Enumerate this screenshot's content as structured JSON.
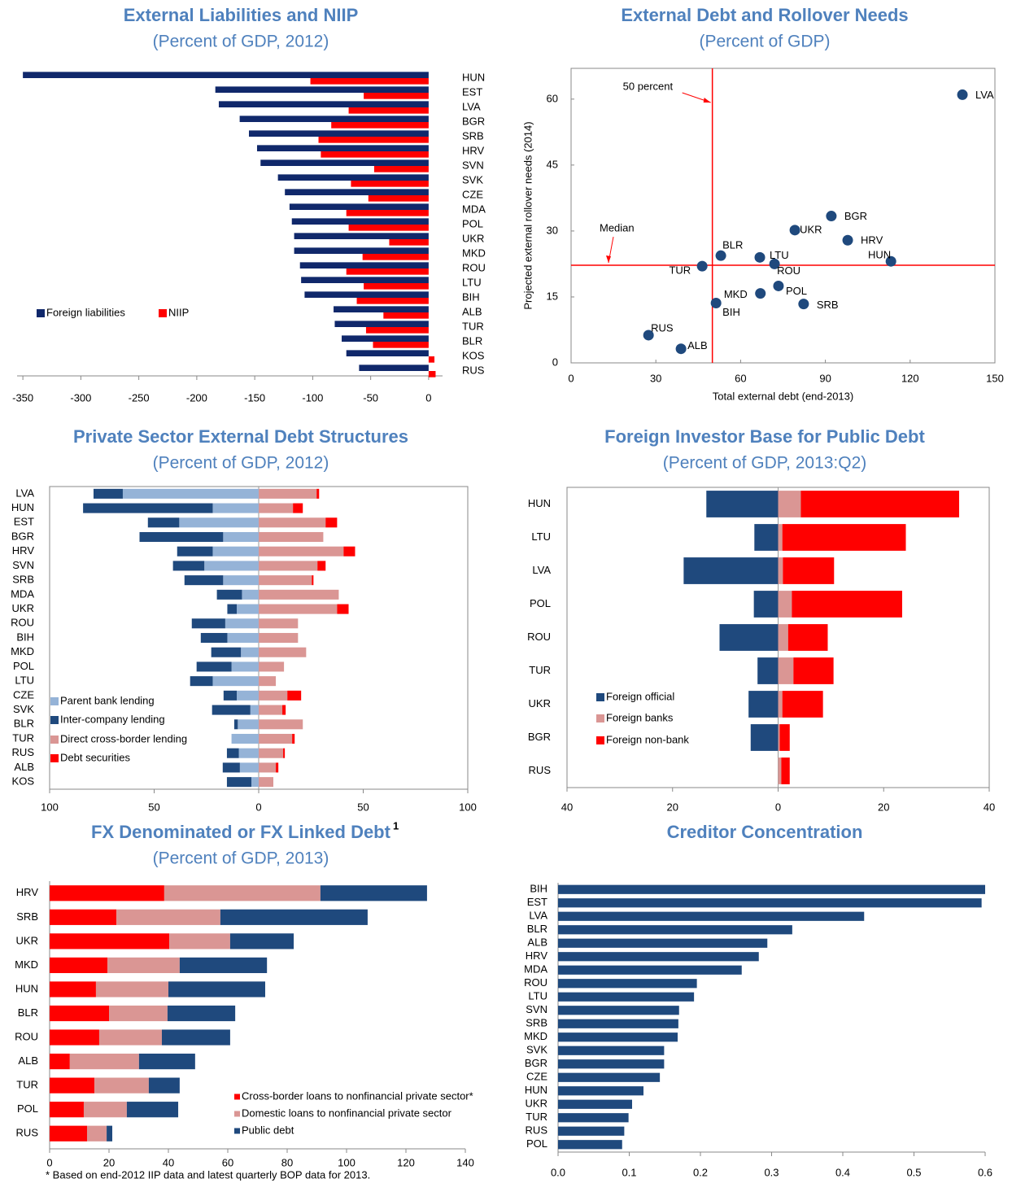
{
  "chart_data": [
    {
      "type": "bar",
      "barmode": "group",
      "title": "External Liabilities and NIIP",
      "subtitle": "(Percent of GDP, 2012)",
      "categories": [
        "HUN",
        "EST",
        "LVA",
        "BGR",
        "SRB",
        "HRV",
        "SVN",
        "SVK",
        "CZE",
        "MDA",
        "POL",
        "UKR",
        "MKD",
        "ROU",
        "LTU",
        "BIH",
        "ALB",
        "TUR",
        "BLR",
        "KOS",
        "RUS"
      ],
      "series": [
        {
          "name": "Foreign liabilities",
          "color": "#10286b",
          "values": [
            -350,
            -184,
            -181,
            -163,
            -155,
            -148,
            -145,
            -130,
            -124,
            -120,
            -118,
            -116,
            -116,
            -111,
            -110,
            -107,
            -82,
            -81,
            -75,
            -71,
            -60
          ]
        },
        {
          "name": "NIIP",
          "color": "#ff0000",
          "values": [
            -102,
            -56,
            -69,
            -84,
            -95,
            -93,
            -47,
            -67,
            -52,
            -71,
            -69,
            -34,
            -57,
            -71,
            -56,
            -62,
            -39,
            -54,
            -48,
            5,
            6
          ]
        }
      ],
      "xlim": [
        -355,
        12
      ],
      "xticks": [
        -350,
        -300,
        -250,
        -200,
        -150,
        -100,
        -50,
        0
      ]
    },
    {
      "type": "scatter",
      "title": "External Debt and Rollover Needs",
      "subtitle": "(Percent of GDP)",
      "x_label": "Total external debt (end-2013)",
      "y_label": "Projected external rollover needs (2014)",
      "labels": [
        "LVA",
        "BGR",
        "HRV",
        "HUN",
        "UKR",
        "BLR",
        "LTU",
        "ROU",
        "TUR",
        "POL",
        "MKD",
        "SRB",
        "BIH",
        "RUS",
        "ALB"
      ],
      "x": [
        138.5,
        92.1,
        97.9,
        113.2,
        79.2,
        53.0,
        66.8,
        72.0,
        46.4,
        73.4,
        67.0,
        82.3,
        51.3,
        27.4,
        38.9
      ],
      "y": [
        61,
        33.4,
        27.9,
        23.1,
        30.2,
        24.4,
        24.0,
        22.5,
        22.0,
        17.5,
        15.8,
        13.4,
        13.6,
        6.3,
        3.2
      ],
      "color": "#1f497d",
      "xlim": [
        0,
        150
      ],
      "ylim": [
        0,
        67
      ],
      "xticks": [
        0,
        30,
        60,
        90,
        120,
        150
      ],
      "yticks": [
        0,
        15,
        30,
        45,
        60
      ],
      "reference_lines": [
        {
          "axis": "x",
          "value": 50,
          "label": "50 percent"
        },
        {
          "axis": "y",
          "value": 22.2,
          "label": "Median"
        }
      ],
      "reference_color": "#ff0000"
    },
    {
      "type": "bar",
      "barmode": "stack",
      "title": "Private Sector External Debt Structures",
      "subtitle": "(Percent of GDP, 2012)",
      "categories": [
        "LVA",
        "HUN",
        "EST",
        "BGR",
        "HRV",
        "SVN",
        "SRB",
        "MDA",
        "UKR",
        "ROU",
        "BIH",
        "MKD",
        "POL",
        "LTU",
        "CZE",
        "SVK",
        "BLR",
        "TUR",
        "RUS",
        "ALB",
        "KOS"
      ],
      "series": [
        {
          "name": "Parent bank lending",
          "color": "#95b3d7",
          "values": [
            -65,
            -22,
            -38,
            -17,
            -22,
            -26,
            -17,
            -8,
            -10.5,
            -16,
            -15,
            -8.5,
            -13,
            -22,
            -10.5,
            -4,
            -10,
            -13,
            -9.5,
            -9,
            -3.5
          ]
        },
        {
          "name": "Inter-company lending",
          "color": "#1f497d",
          "values": [
            -14,
            -62,
            -15,
            -40,
            -17,
            -15,
            -18.5,
            -12,
            -4.5,
            -16,
            -12.7,
            -14.2,
            -16.7,
            -10.8,
            -6.3,
            -18.3,
            -1.7,
            0,
            -5.7,
            -8.2,
            -11.7
          ]
        },
        {
          "name": "Direct cross-border lending",
          "color": "#da9694",
          "values": [
            27.7,
            16.4,
            32,
            30.9,
            40.6,
            28.1,
            25.4,
            38.3,
            37.5,
            18.8,
            18.8,
            22.7,
            12.1,
            8.2,
            13.7,
            11.3,
            21.1,
            16,
            11.7,
            8.2,
            7
          ]
        },
        {
          "name": "Debt securities",
          "color": "#ff0000",
          "values": [
            1.2,
            4.7,
            5.5,
            0,
            5.5,
            3.9,
            0.8,
            0,
            5.5,
            0,
            0,
            0,
            0,
            0,
            6.6,
            1.6,
            0,
            1.2,
            0.8,
            1.2,
            0
          ]
        }
      ],
      "xlim": [
        -100,
        100
      ],
      "xticks": [
        {
          "value": -100,
          "label": "100"
        },
        {
          "value": -50,
          "label": "50"
        },
        0,
        50,
        100
      ]
    },
    {
      "type": "bar",
      "barmode": "stack",
      "title": "Foreign Investor Base for Public Debt",
      "subtitle": "(Percent of GDP, 2013:Q2)",
      "categories": [
        "HUN",
        "LTU",
        "LVA",
        "POL",
        "ROU",
        "TUR",
        "UKR",
        "BGR",
        "RUS"
      ],
      "series": [
        {
          "name": "Foreign official",
          "color": "#1f497d",
          "values": [
            -13.6,
            -4.5,
            -17.9,
            -4.6,
            -11.1,
            -3.9,
            -5.6,
            -5.2,
            0
          ]
        },
        {
          "name": "Foreign banks",
          "color": "#da9694",
          "values": [
            4.3,
            0.8,
            0.9,
            2.6,
            1.9,
            2.9,
            0.8,
            0.3,
            0.6
          ]
        },
        {
          "name": "Foreign non-bank",
          "color": "#ff0000",
          "values": [
            30.0,
            23.4,
            9.7,
            20.9,
            7.5,
            7.6,
            7.7,
            1.9,
            1.6
          ]
        }
      ],
      "xlim": [
        -40,
        40
      ],
      "xticks": [
        {
          "value": -40,
          "label": "40"
        },
        {
          "value": -20,
          "label": "20"
        },
        0,
        20,
        40
      ]
    },
    {
      "type": "bar",
      "barmode": "stack",
      "title": "FX Denominated or FX Linked Debt",
      "title_note": "1",
      "subtitle": "(Percent of GDP, 2013)",
      "footnote": "* Based on end-2012 IIP data and latest quarterly BOP data for 2013.",
      "categories": [
        "HRV",
        "SRB",
        "UKR",
        "MKD",
        "HUN",
        "BLR",
        "ROU",
        "ALB",
        "TUR",
        "POL",
        "RUS"
      ],
      "series": [
        {
          "name": "Cross-border loans to nonfinancial  private sector*",
          "color": "#ff0000",
          "values": [
            38.6,
            22.5,
            40.3,
            19.5,
            15.6,
            20,
            16.7,
            6.8,
            15.1,
            11.5,
            12.6
          ]
        },
        {
          "name": "Domestic loans to nonfinancial  private sector",
          "color": "#da9694",
          "values": [
            52.6,
            35,
            20.5,
            24.3,
            24.4,
            19.7,
            21.1,
            23.3,
            18.3,
            14.5,
            6.6
          ]
        },
        {
          "name": "Public debt",
          "color": "#1f497d",
          "values": [
            35.9,
            49.6,
            21.4,
            29.4,
            32.6,
            22.8,
            23,
            18.9,
            10.4,
            17.3,
            1.9
          ]
        }
      ],
      "xlim": [
        0,
        140
      ],
      "xticks": [
        0,
        20,
        40,
        60,
        80,
        100,
        120,
        140
      ]
    },
    {
      "type": "bar",
      "barmode": "stack",
      "title": "Creditor Concentration",
      "categories": [
        "BIH",
        "EST",
        "LVA",
        "BLR",
        "ALB",
        "HRV",
        "MDA",
        "ROU",
        "LTU",
        "SVN",
        "SRB",
        "MKD",
        "SVK",
        "BGR",
        "CZE",
        "HUN",
        "UKR",
        "TUR",
        "RUS",
        "POL"
      ],
      "series": [
        {
          "color": "#1f497d",
          "values": [
            0.6,
            0.595,
            0.43,
            0.329,
            0.294,
            0.282,
            0.258,
            0.195,
            0.191,
            0.17,
            0.169,
            0.168,
            0.149,
            0.149,
            0.143,
            0.12,
            0.104,
            0.099,
            0.093,
            0.09
          ]
        }
      ],
      "xlim": [
        0,
        0.6
      ],
      "xticks": [
        {
          "value": 0,
          "label": "0.0"
        },
        0.1,
        0.2,
        0.3,
        0.4,
        0.5,
        0.6
      ]
    }
  ]
}
